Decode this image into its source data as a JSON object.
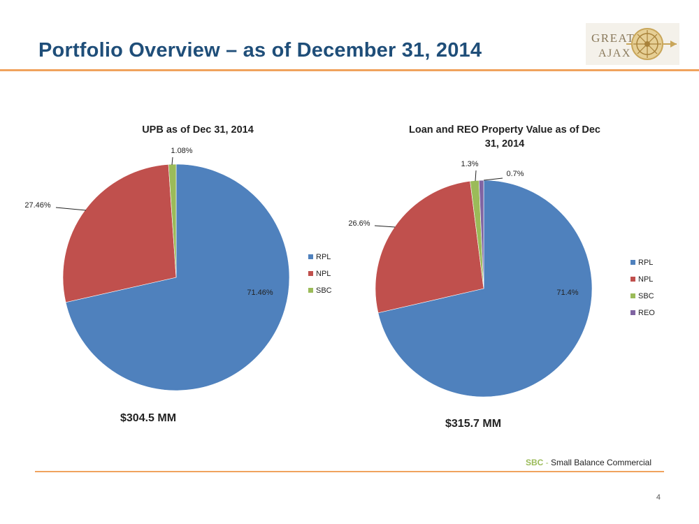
{
  "page": {
    "title": "Portfolio Overview – as of December 31, 2014",
    "page_number": "4"
  },
  "logo": {
    "line1": "GREAT",
    "line2": "AJAX",
    "icon": "shield-wheel-icon"
  },
  "footnote": {
    "abbr": "SBC",
    "separator": " - ",
    "text": "Small Balance Commercial"
  },
  "colors": {
    "title": "#1F4E79",
    "accent_rule": "#F0A35E",
    "RPL": "#4F81BD",
    "NPL": "#C0504D",
    "SBC": "#9BBB59",
    "REO": "#8064A2"
  },
  "chart_data": [
    {
      "type": "pie",
      "title": "UPB as of Dec 31, 2014",
      "categories": [
        "RPL",
        "NPL",
        "SBC"
      ],
      "values": [
        71.46,
        27.46,
        1.08
      ],
      "data_labels": [
        "71.46%",
        "27.46%",
        "1.08%"
      ],
      "legend": [
        "RPL",
        "NPL",
        "SBC"
      ],
      "legend_position": "right",
      "total_label": "$304.5 MM"
    },
    {
      "type": "pie",
      "title": "Loan and REO Property Value as of Dec 31, 2014",
      "categories": [
        "RPL",
        "NPL",
        "SBC",
        "REO"
      ],
      "values": [
        71.4,
        26.6,
        1.3,
        0.7
      ],
      "data_labels": [
        "71.4%",
        "26.6%",
        "1.3%",
        "0.7%"
      ],
      "legend": [
        "RPL",
        "NPL",
        "SBC",
        "REO"
      ],
      "legend_position": "right",
      "total_label": "$315.7 MM"
    }
  ]
}
